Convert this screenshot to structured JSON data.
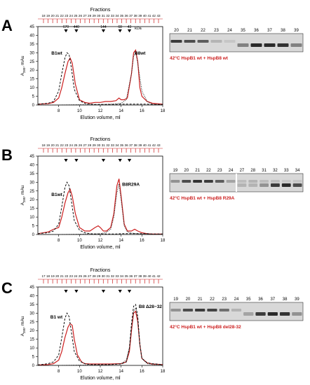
{
  "panel_letters": [
    "A",
    "B",
    "C"
  ],
  "axis_common": {
    "top_label": "Fractions",
    "x_label": "Elution volume, ml",
    "y_label": "A",
    "y_sub": "280",
    "y_unit": ", mAu",
    "kda": "kDa"
  },
  "colors": {
    "red": "#cc2020",
    "black": "#111111",
    "gel_bg": "#d8d8d8",
    "band": "#2a2a2a"
  },
  "chart_data": [
    {
      "panel": "A",
      "type": "line",
      "title": "",
      "xlabel": "Elution volume, ml",
      "ylabel": "A280, mAu",
      "xlim": [
        6,
        18
      ],
      "ylim": [
        0,
        45
      ],
      "xticks": [
        8,
        10,
        12,
        14,
        16,
        18
      ],
      "yticks": [
        0,
        5,
        10,
        15,
        20,
        25,
        30,
        35,
        40,
        45
      ],
      "fraction_labels": [
        "18",
        "19",
        "20",
        "21",
        "22",
        "23",
        "24",
        "25",
        "26",
        "27",
        "28",
        "29",
        "30",
        "31",
        "32",
        "33",
        "34",
        "35",
        "36",
        "37",
        "38",
        "39",
        "40",
        "41",
        "42",
        "43"
      ],
      "markers": [
        {
          "x": 8.7,
          "label": "670"
        },
        {
          "x": 9.7,
          "label": "440"
        },
        {
          "x": 12.3,
          "label": "144"
        },
        {
          "x": 13.9,
          "label": "68"
        },
        {
          "x": 14.8,
          "label": "43"
        }
      ],
      "peak_labels": [
        {
          "text": "B1wt",
          "x": 7.3,
          "y": 29
        },
        {
          "text": "B8wt",
          "x": 15.3,
          "y": 29
        }
      ],
      "series": [
        {
          "style": "solid-red",
          "x": [
            6,
            7,
            7.5,
            8,
            8.3,
            8.6,
            8.9,
            9.1,
            9.3,
            9.6,
            10,
            10.5,
            11,
            11.5,
            12,
            12.5,
            13,
            13.5,
            13.8,
            14,
            14.3,
            14.6,
            15,
            15.2,
            15.4,
            15.6,
            15.8,
            16,
            16.5,
            17,
            18
          ],
          "y": [
            0.5,
            0.8,
            1.5,
            4,
            10,
            18,
            25,
            27,
            24,
            12,
            3,
            1.5,
            1,
            1.5,
            1.5,
            2,
            2,
            2.5,
            4,
            3,
            3,
            4,
            18,
            30,
            31.5,
            25,
            10,
            5,
            2,
            1,
            0.5
          ]
        },
        {
          "style": "dashed-black",
          "x": [
            6,
            7,
            7.5,
            8,
            8.3,
            8.6,
            8.8,
            9,
            9.2,
            9.5,
            10,
            10.5,
            11,
            11.5,
            12,
            12.5,
            13,
            13.5,
            14,
            14.5,
            15,
            15.5,
            16,
            16.5,
            17,
            18
          ],
          "y": [
            0.5,
            1,
            2,
            8,
            18,
            27,
            30,
            29,
            22,
            9,
            2.5,
            1,
            0.5,
            0.3,
            0.3,
            0.3,
            0.3,
            0.3,
            0.5,
            0.5,
            0.5,
            0.5,
            0.5,
            0.5,
            0.3,
            0.3
          ]
        },
        {
          "style": "dotted-black",
          "x": [
            6,
            8,
            10,
            12,
            13,
            14,
            14.5,
            15,
            15.2,
            15.4,
            15.6,
            16,
            16.5,
            17,
            18
          ],
          "y": [
            0,
            0,
            0.2,
            0.3,
            0.5,
            1,
            3,
            18,
            28,
            30,
            24,
            8,
            2,
            0.5,
            0.2
          ]
        }
      ]
    },
    {
      "panel": "B",
      "type": "line",
      "title": "",
      "xlabel": "Elution volume, ml",
      "ylabel": "A280, mAu",
      "xlim": [
        6,
        18
      ],
      "ylim": [
        0,
        45
      ],
      "xticks": [
        8,
        10,
        12,
        14,
        16,
        18
      ],
      "yticks": [
        0,
        5,
        10,
        15,
        20,
        25,
        30,
        35,
        40,
        45
      ],
      "fraction_labels": [
        "18",
        "19",
        "20",
        "21",
        "22",
        "23",
        "24",
        "25",
        "26",
        "27",
        "28",
        "29",
        "30",
        "31",
        "32",
        "33",
        "34",
        "35",
        "36",
        "37",
        "38",
        "39",
        "40",
        "41",
        "42",
        "43"
      ],
      "markers": [
        {
          "x": 8.7,
          "label": ""
        },
        {
          "x": 9.7,
          "label": ""
        },
        {
          "x": 12.3,
          "label": ""
        },
        {
          "x": 13.9,
          "label": ""
        },
        {
          "x": 14.8,
          "label": ""
        }
      ],
      "peak_labels": [
        {
          "text": "B1wt",
          "x": 7.3,
          "y": 22
        },
        {
          "text": "B8R29A",
          "x": 14.1,
          "y": 28
        }
      ],
      "series": [
        {
          "style": "solid-red",
          "x": [
            6,
            7,
            7.5,
            8,
            8.3,
            8.6,
            8.9,
            9.1,
            9.3,
            9.6,
            10,
            10.5,
            11,
            11.5,
            11.8,
            12,
            12.3,
            12.6,
            13,
            13.3,
            13.6,
            13.8,
            14,
            14.3,
            14.6,
            15,
            15.3,
            15.6,
            16,
            16.5,
            17,
            18
          ],
          "y": [
            0.5,
            1.5,
            3,
            4,
            10,
            18,
            24,
            26,
            22,
            12,
            4,
            2,
            2,
            4,
            5,
            4,
            2,
            2,
            4,
            12,
            28,
            32,
            22,
            6,
            2,
            2,
            3,
            2,
            1,
            0.5,
            0.3,
            0.3
          ]
        },
        {
          "style": "dashed-black",
          "x": [
            6,
            7,
            7.5,
            8,
            8.3,
            8.6,
            8.8,
            9,
            9.2,
            9.5,
            10,
            10.5,
            11,
            11.5,
            12,
            12.5,
            13,
            13.5,
            14,
            14.5,
            15,
            15.5,
            16,
            16.5,
            17,
            18
          ],
          "y": [
            0.5,
            1,
            2,
            6,
            16,
            27,
            30,
            28,
            20,
            8,
            2.5,
            1,
            0.5,
            0.3,
            0.3,
            0.3,
            0.3,
            0.3,
            0.5,
            0.5,
            0.5,
            0.5,
            0.5,
            0.5,
            0.3,
            0.3
          ]
        },
        {
          "style": "dotted-black",
          "x": [
            6,
            8,
            10,
            11,
            12,
            12.5,
            13,
            13.3,
            13.6,
            13.8,
            14,
            14.3,
            14.6,
            15,
            15.5,
            16,
            17,
            18
          ],
          "y": [
            0,
            0,
            0.2,
            0.3,
            0.5,
            1,
            3,
            10,
            24,
            29,
            20,
            5,
            1.5,
            0.8,
            0.5,
            0.3,
            0.2,
            0.2
          ]
        }
      ]
    },
    {
      "panel": "C",
      "type": "line",
      "title": "",
      "xlabel": "Elution volume, ml",
      "ylabel": "A280, mAu",
      "xlim": [
        6,
        18
      ],
      "ylim": [
        0,
        45
      ],
      "xticks": [
        8,
        10,
        12,
        14,
        16,
        18
      ],
      "yticks": [
        0,
        5,
        10,
        15,
        20,
        25,
        30,
        35,
        40,
        45
      ],
      "fraction_labels": [
        "17",
        "18",
        "19",
        "20",
        "21",
        "22",
        "23",
        "24",
        "25",
        "26",
        "27",
        "28",
        "29",
        "30",
        "31",
        "32",
        "33",
        "34",
        "35",
        "36",
        "37",
        "38",
        "39",
        "40",
        "41",
        "42"
      ],
      "markers": [
        {
          "x": 8.7,
          "label": ""
        },
        {
          "x": 9.7,
          "label": ""
        },
        {
          "x": 12.3,
          "label": ""
        },
        {
          "x": 13.9,
          "label": ""
        },
        {
          "x": 14.8,
          "label": ""
        }
      ],
      "peak_labels": [
        {
          "text": "B1 wt",
          "x": 7.2,
          "y": 27
        },
        {
          "text": "B8 Δ28−32",
          "x": 15.7,
          "y": 33
        }
      ],
      "series": [
        {
          "style": "solid-red",
          "x": [
            6,
            7,
            7.5,
            8,
            8.3,
            8.6,
            8.9,
            9.1,
            9.3,
            9.5,
            9.8,
            10.2,
            10.5,
            11,
            12,
            13,
            14,
            14.5,
            14.8,
            15,
            15.2,
            15.4,
            15.6,
            15.8,
            16,
            16.5,
            17,
            18
          ],
          "y": [
            0.3,
            0.5,
            1,
            3,
            8,
            16,
            22,
            24,
            23,
            15,
            6,
            2,
            1,
            0.8,
            0.8,
            0.8,
            1,
            2,
            8,
            20,
            30,
            31,
            25,
            12,
            4,
            1.5,
            0.8,
            0.5
          ]
        },
        {
          "style": "dashed-black",
          "x": [
            6,
            7,
            7.5,
            8,
            8.3,
            8.6,
            8.8,
            9,
            9.2,
            9.5,
            10,
            10.5,
            11,
            12,
            13,
            14,
            14.5,
            14.8,
            15,
            15.2,
            15.4,
            15.6,
            15.8,
            16,
            16.5,
            17,
            18
          ],
          "y": [
            0.3,
            1,
            2,
            6,
            16,
            27,
            30,
            28,
            20,
            8,
            2.5,
            1,
            0.5,
            0.5,
            0.5,
            0.8,
            2,
            10,
            24,
            34,
            35,
            28,
            12,
            4,
            1.5,
            1,
            0.5
          ]
        },
        {
          "style": "dotted-black",
          "x": [
            6,
            8,
            10,
            12,
            13,
            14,
            14.5,
            14.8,
            15,
            15.2,
            15.4,
            15.6,
            15.8,
            16,
            16.5,
            17,
            18
          ],
          "y": [
            0,
            0,
            0.2,
            0.3,
            0.5,
            1,
            3,
            10,
            22,
            31,
            33,
            27,
            12,
            4,
            1,
            0.5,
            0.2
          ]
        }
      ]
    }
  ],
  "gels": [
    {
      "lanes": [
        "20",
        "21",
        "22",
        "23",
        "24",
        "35",
        "36",
        "37",
        "38",
        "39"
      ],
      "caption": "42°C HspB1 wt + HspB8 wt",
      "top_band": [
        0.9,
        0.8,
        0.7,
        0.2,
        0.1,
        0,
        0,
        0,
        0,
        0
      ],
      "bottom_band": [
        0,
        0,
        0,
        0,
        0,
        0.5,
        1,
        1,
        0.95,
        0.5
      ],
      "split": false
    },
    {
      "lanes": [
        "19",
        "20",
        "21",
        "22",
        "23",
        "24",
        "27",
        "28",
        "31",
        "32",
        "33",
        "34"
      ],
      "caption": "42°C HspB1 wt + HspB8 R29A",
      "top_band": [
        0.4,
        0.8,
        0.95,
        0.9,
        0.7,
        0.3,
        0.15,
        0.2,
        0.15,
        0.15,
        0.1,
        0.1
      ],
      "bottom_band": [
        0,
        0,
        0,
        0,
        0,
        0,
        0.2,
        0.2,
        0.4,
        0.9,
        1,
        0.8
      ],
      "split": true
    },
    {
      "lanes": [
        "19",
        "20",
        "21",
        "22",
        "23",
        "24",
        "35",
        "36",
        "37",
        "38",
        "39"
      ],
      "caption": "42°C HspB1 wt + HspB8 del28-32",
      "top_band": [
        0.4,
        0.8,
        0.9,
        0.85,
        0.6,
        0.2,
        0,
        0,
        0,
        0,
        0
      ],
      "bottom_band": [
        0,
        0,
        0,
        0,
        0,
        0,
        0.3,
        0.9,
        1,
        0.95,
        0.4
      ],
      "split": false
    }
  ]
}
